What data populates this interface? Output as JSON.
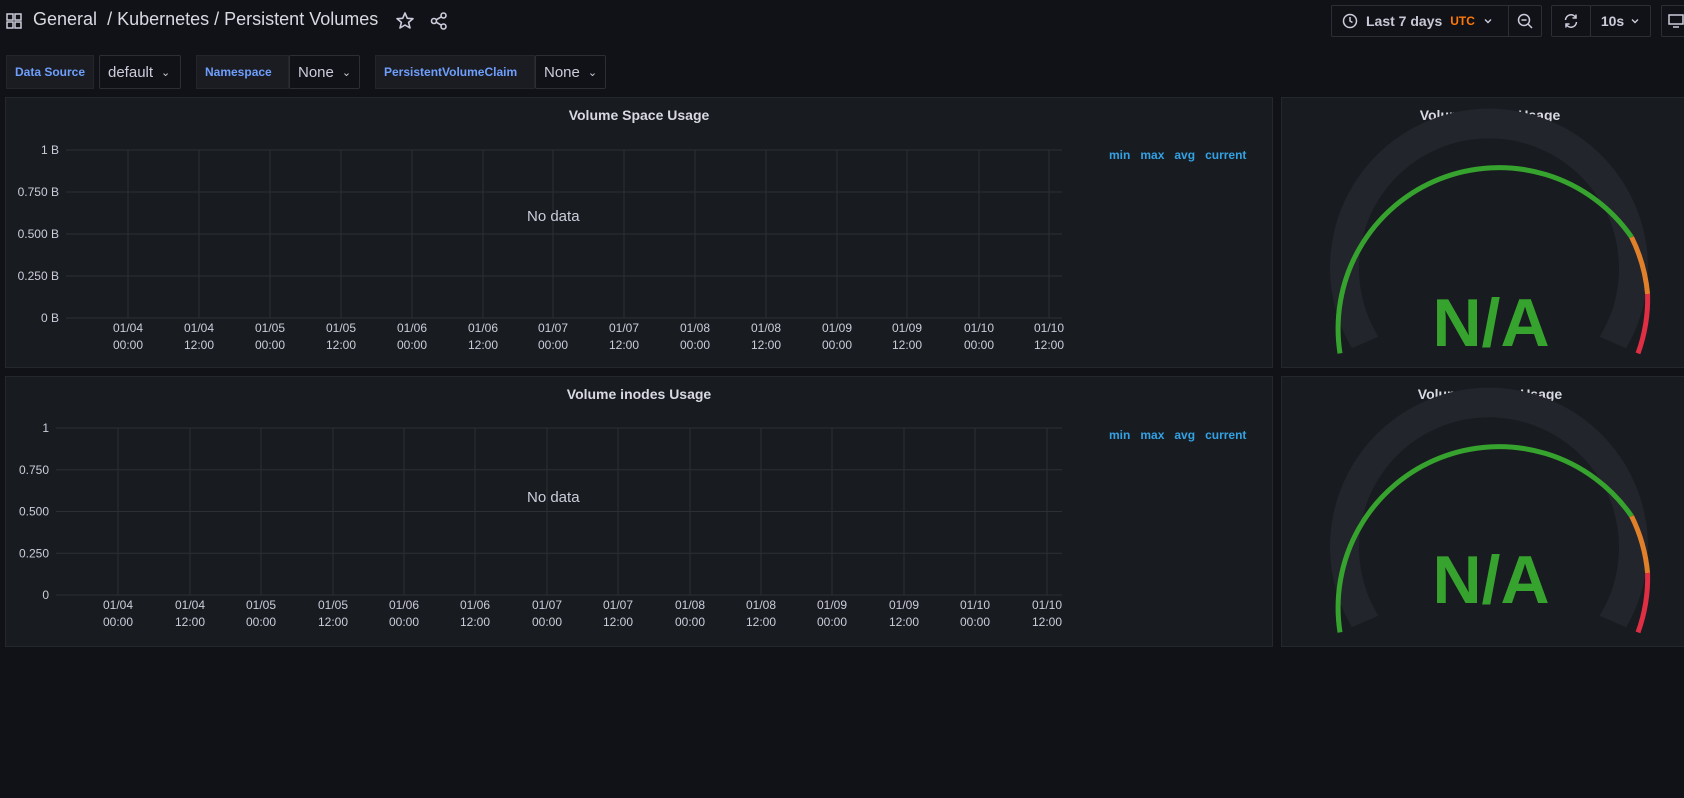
{
  "header": {
    "folder": "General",
    "separator1": "/",
    "path": "Kubernetes / Persistent Volumes"
  },
  "toolbar": {
    "time_range": "Last 7 days",
    "timezone": "UTC",
    "refresh_interval": "10s"
  },
  "variables": [
    {
      "label": "Data Source",
      "value": "default"
    },
    {
      "label": "Namespace",
      "value": "None"
    },
    {
      "label": "PersistentVolumeClaim",
      "value": "None"
    }
  ],
  "panels": {
    "space_graph": {
      "title": "Volume Space Usage",
      "no_data": "No data",
      "legend": [
        "min",
        "max",
        "avg",
        "current"
      ]
    },
    "space_gauge": {
      "title": "Volume Space Usage",
      "value": "N/A"
    },
    "inodes_graph": {
      "title": "Volume inodes Usage",
      "no_data": "No data",
      "legend": [
        "min",
        "max",
        "avg",
        "current"
      ]
    },
    "inodes_gauge": {
      "title": "Volume inodes Usage",
      "value": "N/A"
    }
  },
  "colors": {
    "gauge_green": "#37a32f",
    "gauge_orange": "#e0802a",
    "gauge_red": "#e02f44",
    "legend_blue": "#33a2e5",
    "utc_orange": "#ff780a"
  },
  "chart_data": [
    {
      "type": "line",
      "title": "Volume Space Usage",
      "series": [],
      "y_ticks": [
        "1 B",
        "0.750 B",
        "0.500 B",
        "0.250 B",
        "0 B"
      ],
      "ylim": [
        0,
        1
      ],
      "x_ticks": [
        [
          "01/04",
          "00:00"
        ],
        [
          "01/04",
          "12:00"
        ],
        [
          "01/05",
          "00:00"
        ],
        [
          "01/05",
          "12:00"
        ],
        [
          "01/06",
          "00:00"
        ],
        [
          "01/06",
          "12:00"
        ],
        [
          "01/07",
          "00:00"
        ],
        [
          "01/07",
          "12:00"
        ],
        [
          "01/08",
          "00:00"
        ],
        [
          "01/08",
          "12:00"
        ],
        [
          "01/09",
          "00:00"
        ],
        [
          "01/09",
          "12:00"
        ],
        [
          "01/10",
          "00:00"
        ],
        [
          "01/10",
          "12:00"
        ]
      ],
      "grid": true,
      "legend": "right"
    },
    {
      "type": "line",
      "title": "Volume inodes Usage",
      "series": [],
      "y_ticks": [
        "1",
        "0.750",
        "0.500",
        "0.250",
        "0"
      ],
      "ylim": [
        0,
        1
      ],
      "x_ticks": [
        [
          "01/04",
          "00:00"
        ],
        [
          "01/04",
          "12:00"
        ],
        [
          "01/05",
          "00:00"
        ],
        [
          "01/05",
          "12:00"
        ],
        [
          "01/06",
          "00:00"
        ],
        [
          "01/06",
          "12:00"
        ],
        [
          "01/07",
          "00:00"
        ],
        [
          "01/07",
          "12:00"
        ],
        [
          "01/08",
          "00:00"
        ],
        [
          "01/08",
          "12:00"
        ],
        [
          "01/09",
          "00:00"
        ],
        [
          "01/09",
          "12:00"
        ],
        [
          "01/10",
          "00:00"
        ],
        [
          "01/10",
          "12:00"
        ]
      ],
      "grid": true,
      "legend": "right"
    }
  ]
}
